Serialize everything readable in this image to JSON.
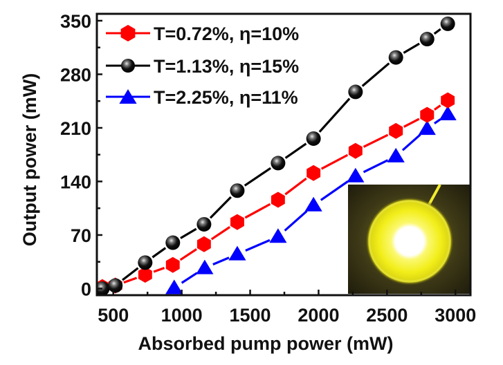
{
  "chart_data": {
    "type": "line",
    "title": "",
    "xlabel": "Absorbed pump power (mW)",
    "ylabel": "Output power (mW)",
    "xlim": [
      380,
      3110
    ],
    "ylim": [
      -8.6,
      359
    ],
    "xticks": [
      500,
      1000,
      1500,
      2000,
      2500,
      3000
    ],
    "xtick_labels": [
      "500",
      "1000",
      "1500",
      "2000",
      "2500",
      "3000"
    ],
    "xminor": [
      750,
      1250,
      1750,
      2250,
      2750
    ],
    "yticks": [
      0,
      70,
      140,
      210,
      280,
      350
    ],
    "ytick_labels": [
      "0",
      "70",
      "140",
      "210",
      "280",
      "350"
    ],
    "yminor": [
      35,
      105,
      175,
      245,
      315
    ],
    "grid": false,
    "legend_position": "top-left",
    "series": [
      {
        "name": "T=0.72%, η=10%",
        "color": "#ff0000",
        "marker": "hexagon",
        "x": [
          420,
          515,
          733,
          935,
          1163,
          1406,
          1704,
          1963,
          2270,
          2565,
          2793,
          2944
        ],
        "y": [
          2,
          4,
          18,
          31,
          58,
          87,
          116,
          151,
          180,
          206,
          227,
          246
        ]
      },
      {
        "name": "T=1.13%, η=15%",
        "color": "#000000",
        "marker": "sphere",
        "x": [
          420,
          515,
          733,
          935,
          1163,
          1406,
          1704,
          1963,
          2270,
          2565,
          2793,
          2944
        ],
        "y": [
          0,
          4,
          34,
          60,
          84,
          128,
          164,
          196,
          257,
          302,
          326,
          346
        ]
      },
      {
        "name": "T=2.25%, η=11%",
        "color": "#0000ff",
        "marker": "triangle",
        "x": [
          945,
          1168,
          1406,
          1704,
          1963,
          2270,
          2565,
          2793,
          2944
        ],
        "y": [
          1,
          27,
          45,
          68,
          109,
          147,
          173,
          209,
          228
        ]
      }
    ],
    "inset": {
      "description": "photo of glowing yellow laser output spot",
      "glow_color": "#f2ee1a",
      "background_color": "#2e2a12"
    }
  }
}
